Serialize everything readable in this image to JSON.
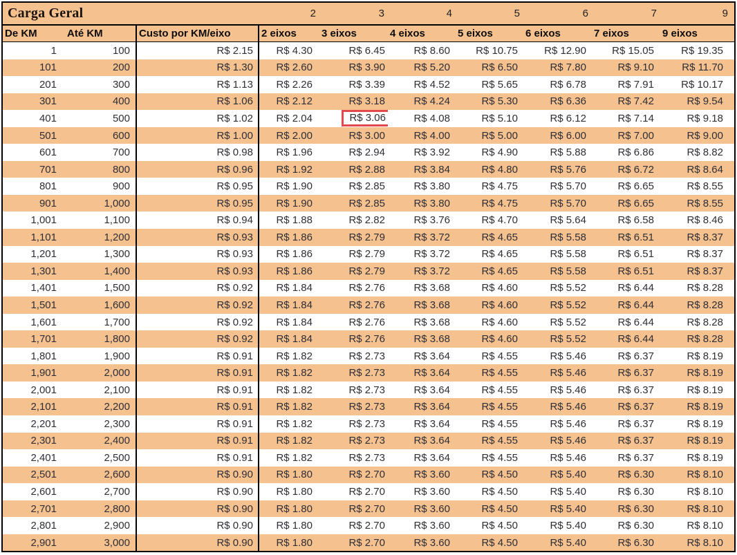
{
  "title_row": {
    "title": "Carga Geral",
    "axle_numbers": [
      "2",
      "3",
      "4",
      "5",
      "6",
      "7",
      "9"
    ]
  },
  "columns": [
    "De KM",
    "Até KM",
    "Custo por KM/eixo",
    "2 eixos",
    "3 eixos",
    "4 eixos",
    "5 eixos",
    "6 eixos",
    "7 eixos",
    "9 eixos"
  ],
  "highlight": {
    "row_index": 4,
    "cell_index": 4,
    "value": "R$ 3.06",
    "border_color": "#E2494F"
  },
  "colors": {
    "stripe_orange": "#F5C18F",
    "header_fill": "#F5C18F",
    "grid_border": "#000000",
    "highlight_red": "#E2494F",
    "text": "#2e2e36"
  },
  "rows": [
    [
      "1",
      "100",
      "R$ 2.15",
      "R$ 4.30",
      "R$ 6.45",
      "R$ 8.60",
      "R$ 10.75",
      "R$ 12.90",
      "R$ 15.05",
      "R$ 19.35"
    ],
    [
      "101",
      "200",
      "R$ 1.30",
      "R$ 2.60",
      "R$ 3.90",
      "R$ 5.20",
      "R$ 6.50",
      "R$ 7.80",
      "R$ 9.10",
      "R$ 11.70"
    ],
    [
      "201",
      "300",
      "R$ 1.13",
      "R$ 2.26",
      "R$ 3.39",
      "R$ 4.52",
      "R$ 5.65",
      "R$ 6.78",
      "R$ 7.91",
      "R$ 10.17"
    ],
    [
      "301",
      "400",
      "R$ 1.06",
      "R$ 2.12",
      "R$ 3.18",
      "R$ 4.24",
      "R$ 5.30",
      "R$ 6.36",
      "R$ 7.42",
      "R$ 9.54"
    ],
    [
      "401",
      "500",
      "R$ 1.02",
      "R$ 2.04",
      "R$ 3.06",
      "R$ 4.08",
      "R$ 5.10",
      "R$ 6.12",
      "R$ 7.14",
      "R$ 9.18"
    ],
    [
      "501",
      "600",
      "R$ 1.00",
      "R$ 2.00",
      "R$ 3.00",
      "R$ 4.00",
      "R$ 5.00",
      "R$ 6.00",
      "R$ 7.00",
      "R$ 9.00"
    ],
    [
      "601",
      "700",
      "R$ 0.98",
      "R$ 1.96",
      "R$ 2.94",
      "R$ 3.92",
      "R$ 4.90",
      "R$ 5.88",
      "R$ 6.86",
      "R$ 8.82"
    ],
    [
      "701",
      "800",
      "R$ 0.96",
      "R$ 1.92",
      "R$ 2.88",
      "R$ 3.84",
      "R$ 4.80",
      "R$ 5.76",
      "R$ 6.72",
      "R$ 8.64"
    ],
    [
      "801",
      "900",
      "R$ 0.95",
      "R$ 1.90",
      "R$ 2.85",
      "R$ 3.80",
      "R$ 4.75",
      "R$ 5.70",
      "R$ 6.65",
      "R$ 8.55"
    ],
    [
      "901",
      "1,000",
      "R$ 0.95",
      "R$ 1.90",
      "R$ 2.85",
      "R$ 3.80",
      "R$ 4.75",
      "R$ 5.70",
      "R$ 6.65",
      "R$ 8.55"
    ],
    [
      "1,001",
      "1,100",
      "R$ 0.94",
      "R$ 1.88",
      "R$ 2.82",
      "R$ 3.76",
      "R$ 4.70",
      "R$ 5.64",
      "R$ 6.58",
      "R$ 8.46"
    ],
    [
      "1,101",
      "1,200",
      "R$ 0.93",
      "R$ 1.86",
      "R$ 2.79",
      "R$ 3.72",
      "R$ 4.65",
      "R$ 5.58",
      "R$ 6.51",
      "R$ 8.37"
    ],
    [
      "1,201",
      "1,300",
      "R$ 0.93",
      "R$ 1.86",
      "R$ 2.79",
      "R$ 3.72",
      "R$ 4.65",
      "R$ 5.58",
      "R$ 6.51",
      "R$ 8.37"
    ],
    [
      "1,301",
      "1,400",
      "R$ 0.93",
      "R$ 1.86",
      "R$ 2.79",
      "R$ 3.72",
      "R$ 4.65",
      "R$ 5.58",
      "R$ 6.51",
      "R$ 8.37"
    ],
    [
      "1,401",
      "1,500",
      "R$ 0.92",
      "R$ 1.84",
      "R$ 2.76",
      "R$ 3.68",
      "R$ 4.60",
      "R$ 5.52",
      "R$ 6.44",
      "R$ 8.28"
    ],
    [
      "1,501",
      "1,600",
      "R$ 0.92",
      "R$ 1.84",
      "R$ 2.76",
      "R$ 3.68",
      "R$ 4.60",
      "R$ 5.52",
      "R$ 6.44",
      "R$ 8.28"
    ],
    [
      "1,601",
      "1,700",
      "R$ 0.92",
      "R$ 1.84",
      "R$ 2.76",
      "R$ 3.68",
      "R$ 4.60",
      "R$ 5.52",
      "R$ 6.44",
      "R$ 8.28"
    ],
    [
      "1,701",
      "1,800",
      "R$ 0.92",
      "R$ 1.84",
      "R$ 2.76",
      "R$ 3.68",
      "R$ 4.60",
      "R$ 5.52",
      "R$ 6.44",
      "R$ 8.28"
    ],
    [
      "1,801",
      "1,900",
      "R$ 0.91",
      "R$ 1.82",
      "R$ 2.73",
      "R$ 3.64",
      "R$ 4.55",
      "R$ 5.46",
      "R$ 6.37",
      "R$ 8.19"
    ],
    [
      "1,901",
      "2,000",
      "R$ 0.91",
      "R$ 1.82",
      "R$ 2.73",
      "R$ 3.64",
      "R$ 4.55",
      "R$ 5.46",
      "R$ 6.37",
      "R$ 8.19"
    ],
    [
      "2,001",
      "2,100",
      "R$ 0.91",
      "R$ 1.82",
      "R$ 2.73",
      "R$ 3.64",
      "R$ 4.55",
      "R$ 5.46",
      "R$ 6.37",
      "R$ 8.19"
    ],
    [
      "2,101",
      "2,200",
      "R$ 0.91",
      "R$ 1.82",
      "R$ 2.73",
      "R$ 3.64",
      "R$ 4.55",
      "R$ 5.46",
      "R$ 6.37",
      "R$ 8.19"
    ],
    [
      "2,201",
      "2,300",
      "R$ 0.91",
      "R$ 1.82",
      "R$ 2.73",
      "R$ 3.64",
      "R$ 4.55",
      "R$ 5.46",
      "R$ 6.37",
      "R$ 8.19"
    ],
    [
      "2,301",
      "2,400",
      "R$ 0.91",
      "R$ 1.82",
      "R$ 2.73",
      "R$ 3.64",
      "R$ 4.55",
      "R$ 5.46",
      "R$ 6.37",
      "R$ 8.19"
    ],
    [
      "2,401",
      "2,500",
      "R$ 0.91",
      "R$ 1.82",
      "R$ 2.73",
      "R$ 3.64",
      "R$ 4.55",
      "R$ 5.46",
      "R$ 6.37",
      "R$ 8.19"
    ],
    [
      "2,501",
      "2,600",
      "R$ 0.90",
      "R$ 1.80",
      "R$ 2.70",
      "R$ 3.60",
      "R$ 4.50",
      "R$ 5.40",
      "R$ 6.30",
      "R$ 8.10"
    ],
    [
      "2,601",
      "2,700",
      "R$ 0.90",
      "R$ 1.80",
      "R$ 2.70",
      "R$ 3.60",
      "R$ 4.50",
      "R$ 5.40",
      "R$ 6.30",
      "R$ 8.10"
    ],
    [
      "2,701",
      "2,800",
      "R$ 0.90",
      "R$ 1.80",
      "R$ 2.70",
      "R$ 3.60",
      "R$ 4.50",
      "R$ 5.40",
      "R$ 6.30",
      "R$ 8.10"
    ],
    [
      "2,801",
      "2,900",
      "R$ 0.90",
      "R$ 1.80",
      "R$ 2.70",
      "R$ 3.60",
      "R$ 4.50",
      "R$ 5.40",
      "R$ 6.30",
      "R$ 8.10"
    ],
    [
      "2,901",
      "3,000",
      "R$ 0.90",
      "R$ 1.80",
      "R$ 2.70",
      "R$ 3.60",
      "R$ 4.50",
      "R$ 5.40",
      "R$ 6.30",
      "R$ 8.10"
    ]
  ]
}
